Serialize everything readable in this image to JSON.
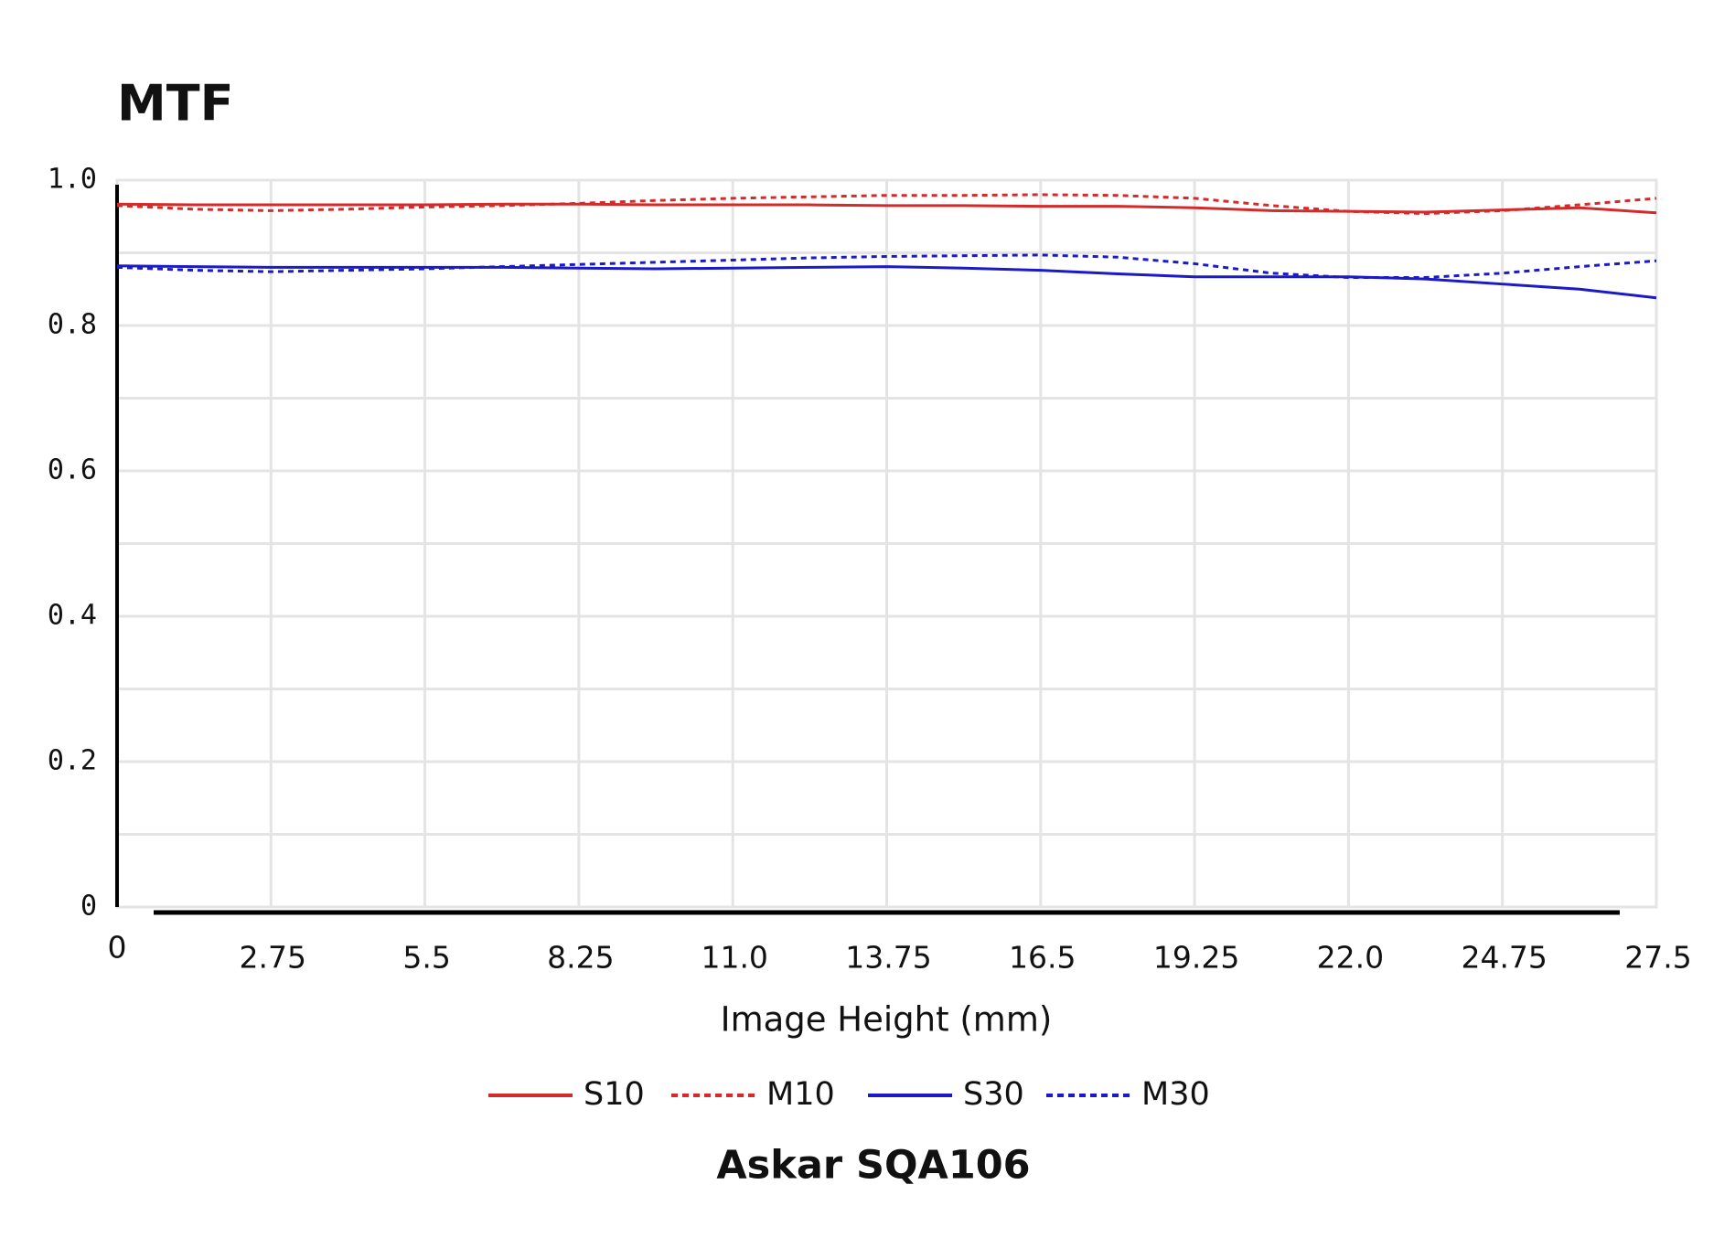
{
  "chart_data": {
    "type": "line",
    "title": "MTF",
    "x_label": "Image Height (mm)",
    "caption": "Askar SQA106",
    "x": [
      0,
      1.375,
      2.75,
      4.125,
      5.5,
      6.875,
      8.25,
      9.625,
      11,
      12.375,
      13.75,
      15.125,
      16.5,
      17.875,
      19.25,
      20.625,
      22,
      23.375,
      24.75,
      26.125,
      27.5
    ],
    "series": [
      {
        "name": "S10",
        "color": "#d42a2a",
        "dash": false,
        "values": [
          0.967,
          0.966,
          0.966,
          0.966,
          0.966,
          0.967,
          0.967,
          0.966,
          0.966,
          0.966,
          0.965,
          0.965,
          0.964,
          0.964,
          0.962,
          0.958,
          0.957,
          0.956,
          0.959,
          0.962,
          0.955
        ]
      },
      {
        "name": "M10",
        "color": "#d42a2a",
        "dash": true,
        "values": [
          0.965,
          0.96,
          0.958,
          0.96,
          0.963,
          0.965,
          0.968,
          0.972,
          0.975,
          0.977,
          0.979,
          0.979,
          0.98,
          0.979,
          0.975,
          0.965,
          0.957,
          0.954,
          0.958,
          0.966,
          0.975
        ]
      },
      {
        "name": "S30",
        "color": "#1a1ac8",
        "dash": false,
        "values": [
          0.882,
          0.881,
          0.88,
          0.88,
          0.88,
          0.88,
          0.879,
          0.878,
          0.879,
          0.88,
          0.881,
          0.879,
          0.876,
          0.871,
          0.867,
          0.867,
          0.867,
          0.864,
          0.857,
          0.85,
          0.838
        ]
      },
      {
        "name": "M30",
        "color": "#1a1ac8",
        "dash": true,
        "values": [
          0.88,
          0.876,
          0.874,
          0.876,
          0.878,
          0.881,
          0.884,
          0.887,
          0.89,
          0.893,
          0.895,
          0.896,
          0.897,
          0.894,
          0.885,
          0.872,
          0.866,
          0.866,
          0.872,
          0.881,
          0.889
        ]
      }
    ],
    "xlim": [
      0,
      27.5
    ],
    "ylim": [
      0,
      1
    ],
    "xticks": [
      0,
      2.75,
      5.5,
      8.25,
      {
        "value": 11,
        "label": "11.0"
      },
      13.75,
      16.5,
      19.25,
      {
        "value": 22,
        "label": "22.0"
      },
      24.75,
      27.5
    ],
    "yticks": [
      0,
      0.2,
      0.4,
      0.6,
      0.8,
      {
        "value": 1,
        "label": "1.0"
      }
    ],
    "minor_yticks": [
      0.1,
      0.3,
      0.5,
      0.7,
      0.9
    ],
    "grid": true,
    "legend": "bottom"
  }
}
